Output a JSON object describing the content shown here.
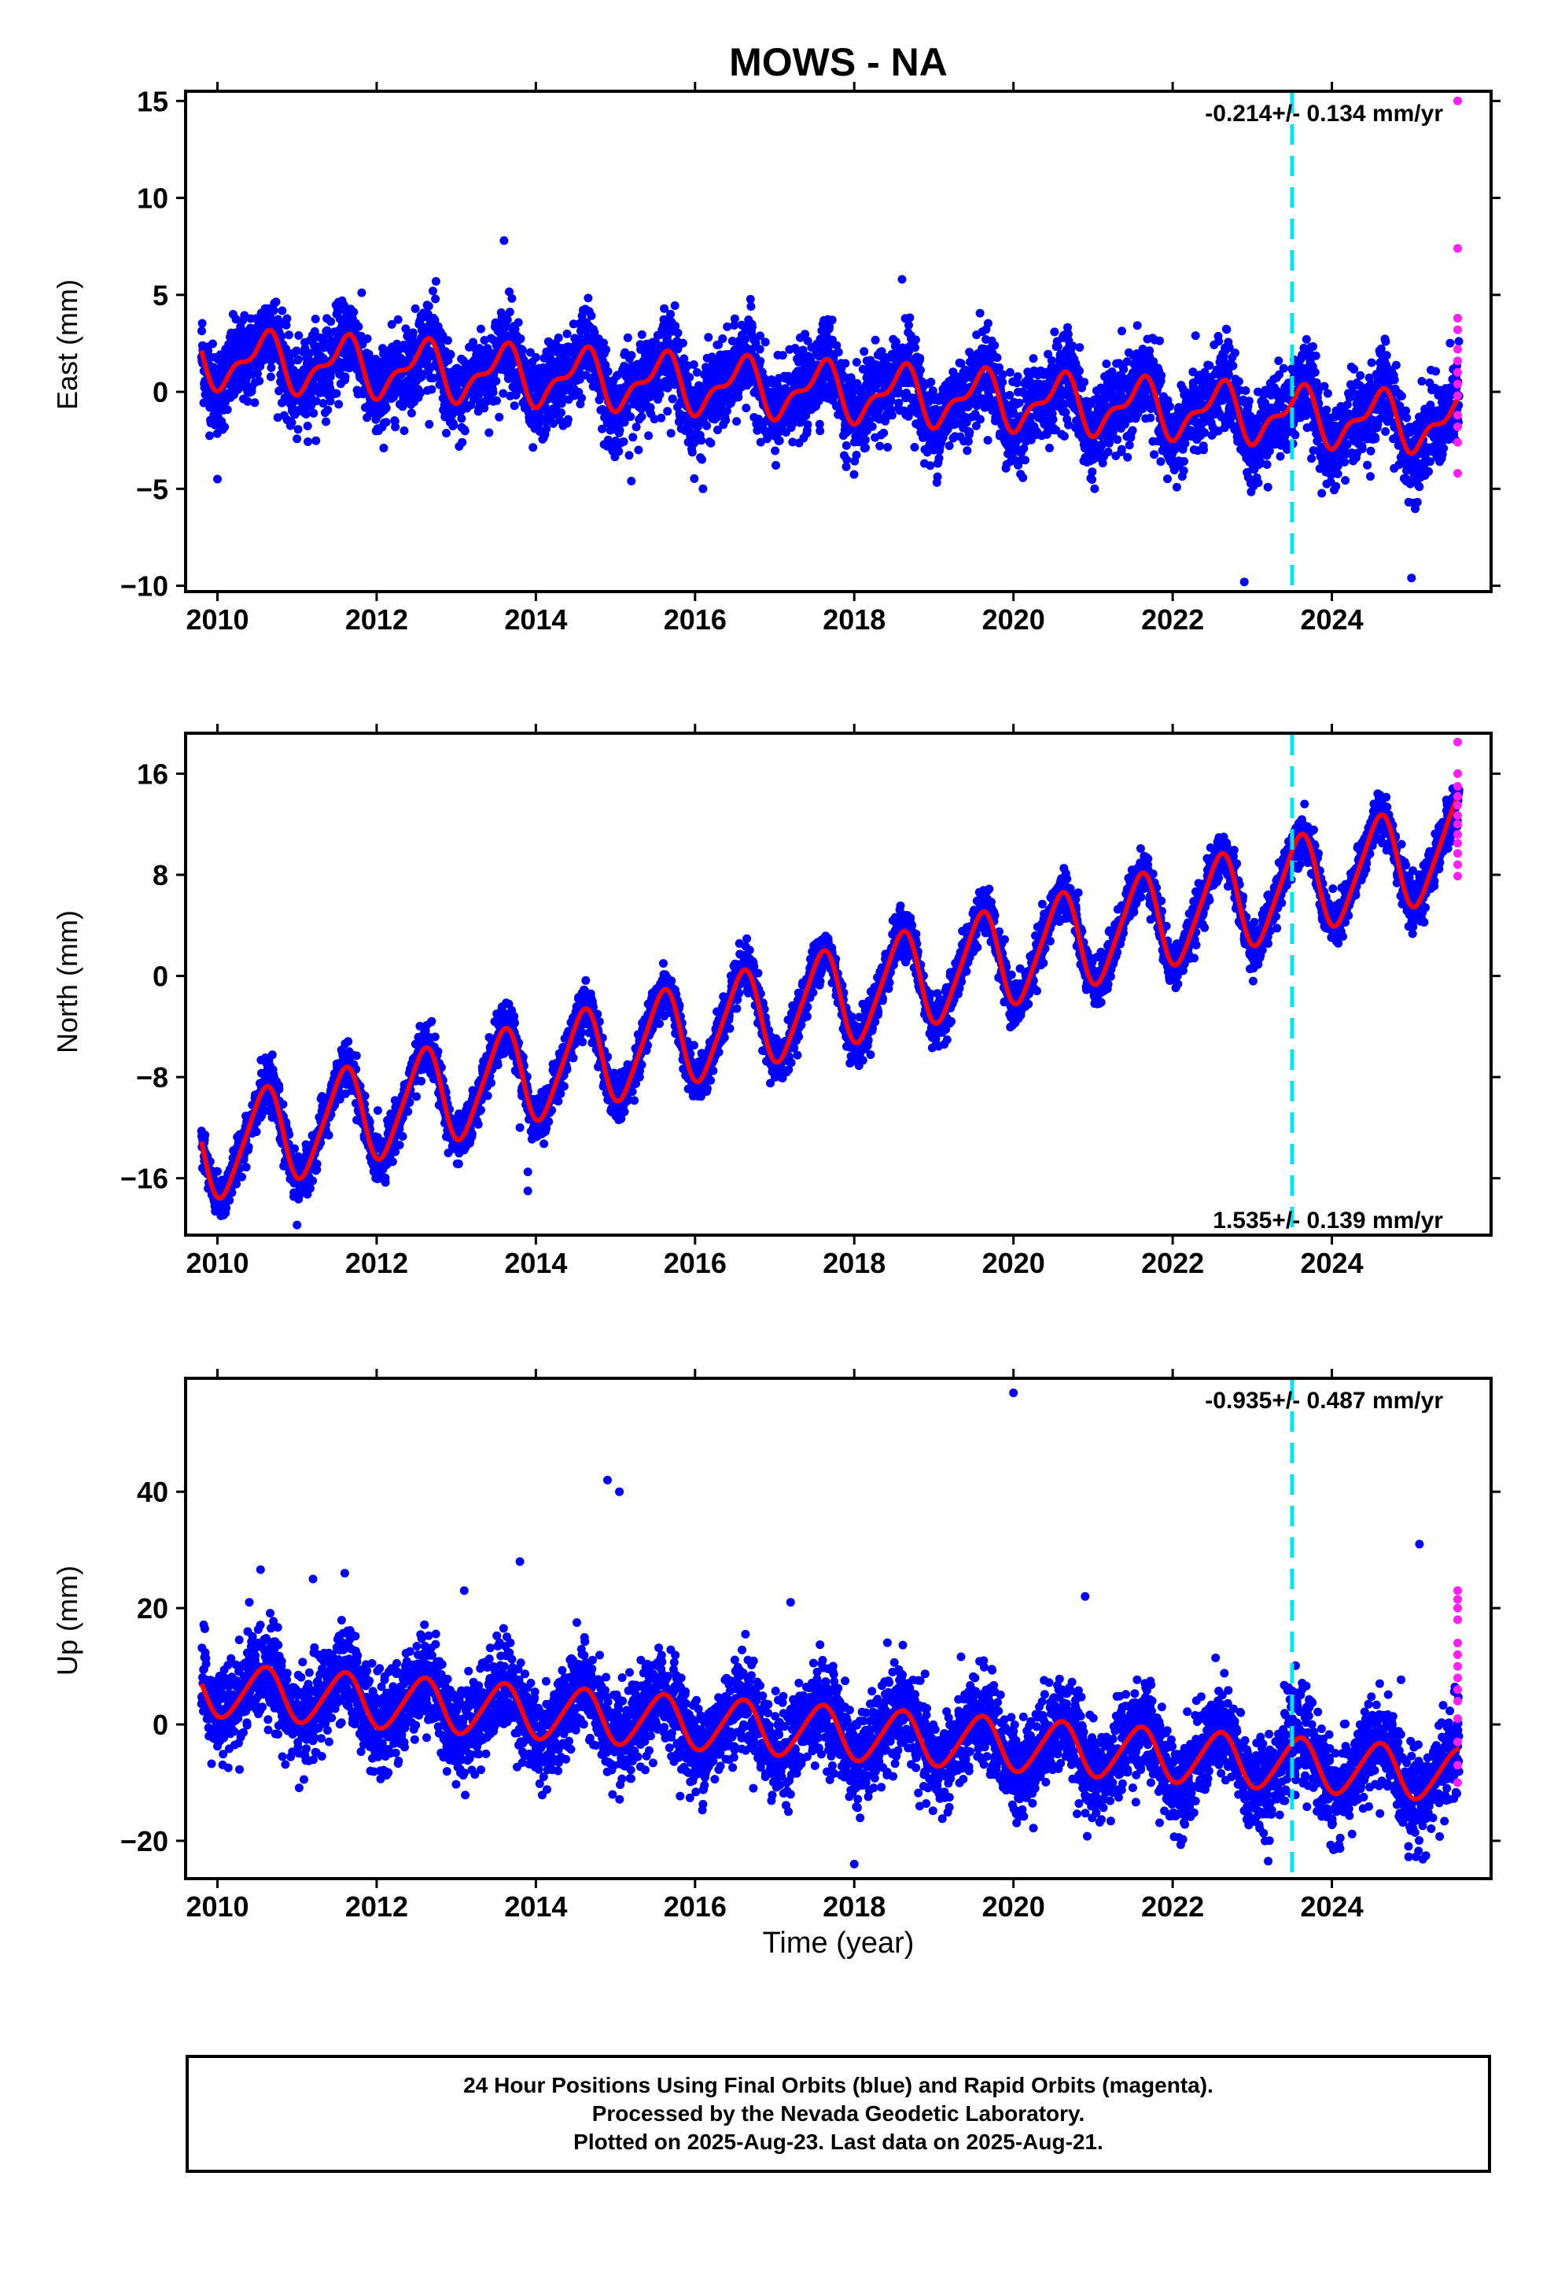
{
  "title": "MOWS - NA",
  "colors": {
    "final": "#0000ff",
    "rapid": "#ff22ee",
    "model": "#ff0000",
    "event": "#00e5f0",
    "axes": "#000000"
  },
  "xaxis": {
    "label": "Time (year)",
    "range": [
      2009.6,
      2026.0
    ],
    "ticks": [
      "2010",
      "2012",
      "2014",
      "2016",
      "2018",
      "2020",
      "2022",
      "2024"
    ]
  },
  "event_year": 2023.5,
  "panels": [
    {
      "ylabel": "East (mm)",
      "ylim": [
        -10.3,
        15.5
      ],
      "yticks": [
        "15",
        "10",
        "5",
        "0",
        "−5",
        "−10"
      ],
      "rate": "-0.214+/- 0.134 mm/yr",
      "rate_pos": "top-right"
    },
    {
      "ylabel": "North (mm)",
      "ylim": [
        -20.5,
        19.2
      ],
      "yticks": [
        "16",
        "8",
        "0",
        "−8",
        "−16"
      ],
      "rate": "1.535+/- 0.139 mm/yr",
      "rate_pos": "bottom-right"
    },
    {
      "ylabel": "Up (mm)",
      "ylim": [
        -26.5,
        59.5
      ],
      "yticks": [
        "40",
        "20",
        "0",
        "−20"
      ],
      "rate": "-0.935+/- 0.487 mm/yr",
      "rate_pos": "top-right"
    }
  ],
  "chart_data": {
    "type": "scatter",
    "title": "MOWS - NA",
    "xlabel": "Time (year)",
    "x_range": [
      2009.6,
      2026.0
    ],
    "series": [
      {
        "name": "Final Orbits (blue)",
        "panel": "East (mm)",
        "model": {
          "start": 2009.8,
          "end": 2025.6,
          "offset": 1.7,
          "rate_mm_yr": -0.214,
          "annual_amplitude": 1.3,
          "semiannual_amplitude": 0.6,
          "scatter_sd": 1.1
        },
        "outliers": [
          [
            2010.0,
            -4.5
          ],
          [
            2013.6,
            7.8
          ],
          [
            2015.2,
            -4.6
          ],
          [
            2016.1,
            -5.0
          ],
          [
            2018.6,
            5.8
          ],
          [
            2022.9,
            -9.8
          ],
          [
            2025.0,
            -9.6
          ]
        ]
      },
      {
        "name": "Final Orbits (blue)",
        "panel": "North (mm)",
        "model": {
          "start": 2009.8,
          "end": 2025.6,
          "offset": -14.0,
          "rate_mm_yr": 1.535,
          "annual_amplitude": 3.8,
          "semiannual_amplitude": 0.6,
          "scatter_sd": 0.9
        },
        "outliers": [
          [
            2011.0,
            -19.7
          ],
          [
            2013.9,
            -15.5
          ],
          [
            2013.9,
            -17.0
          ],
          [
            2012.9,
            -14.0
          ],
          [
            2013.8,
            -12.0
          ]
        ]
      },
      {
        "name": "Final Orbits (blue)",
        "panel": "Up (mm)",
        "model": {
          "start": 2009.8,
          "end": 2025.6,
          "offset": 6.0,
          "rate_mm_yr": -0.935,
          "annual_amplitude": 4.5,
          "semiannual_amplitude": 0.5,
          "scatter_sd": 4.0
        },
        "outliers": [
          [
            2010.4,
            21.0
          ],
          [
            2011.2,
            25.0
          ],
          [
            2011.6,
            26.0
          ],
          [
            2013.1,
            23.0
          ],
          [
            2013.8,
            28.0
          ],
          [
            2014.9,
            42.0
          ],
          [
            2015.05,
            40.0
          ],
          [
            2017.2,
            21.0
          ],
          [
            2020.0,
            57.0
          ],
          [
            2020.9,
            22.0
          ],
          [
            2018.0,
            -24.0
          ],
          [
            2023.2,
            -23.5
          ],
          [
            2025.1,
            31.0
          ]
        ]
      },
      {
        "name": "Rapid Orbits (magenta)",
        "panel": "East (mm)",
        "points": [
          [
            2025.58,
            15.0
          ],
          [
            2025.58,
            7.4
          ],
          [
            2025.58,
            3.8
          ],
          [
            2025.58,
            3.2
          ],
          [
            2025.58,
            2.2
          ],
          [
            2025.58,
            1.6
          ],
          [
            2025.58,
            1.0
          ],
          [
            2025.58,
            0.4
          ],
          [
            2025.58,
            -0.2
          ],
          [
            2025.58,
            -1.2
          ],
          [
            2025.58,
            -1.8
          ],
          [
            2025.58,
            -2.6
          ],
          [
            2025.58,
            -4.2
          ]
        ]
      },
      {
        "name": "Rapid Orbits (magenta)",
        "panel": "North (mm)",
        "points": [
          [
            2025.58,
            18.5
          ],
          [
            2025.58,
            16.0
          ],
          [
            2025.58,
            15.0
          ],
          [
            2025.58,
            14.2
          ],
          [
            2025.58,
            13.5
          ],
          [
            2025.58,
            12.7
          ],
          [
            2025.58,
            12.0
          ],
          [
            2025.58,
            11.2
          ],
          [
            2025.58,
            10.5
          ],
          [
            2025.58,
            9.7
          ],
          [
            2025.58,
            8.8
          ],
          [
            2025.58,
            7.9
          ]
        ]
      },
      {
        "name": "Rapid Orbits (magenta)",
        "panel": "Up (mm)",
        "points": [
          [
            2025.58,
            23.0
          ],
          [
            2025.58,
            21.5
          ],
          [
            2025.58,
            20.0
          ],
          [
            2025.58,
            18.0
          ],
          [
            2025.58,
            14.0
          ],
          [
            2025.58,
            12.0
          ],
          [
            2025.58,
            10.0
          ],
          [
            2025.58,
            8.0
          ],
          [
            2025.58,
            6.0
          ],
          [
            2025.58,
            4.0
          ],
          [
            2025.58,
            1.0
          ],
          [
            2025.58,
            -3.0
          ],
          [
            2025.58,
            -7.0
          ],
          [
            2025.58,
            -10.0
          ]
        ]
      }
    ],
    "rates": [
      "-0.214+/- 0.134 mm/yr",
      "1.535+/- 0.139 mm/yr",
      "-0.935+/- 0.487 mm/yr"
    ],
    "grid": false
  },
  "footer": {
    "line1": "24 Hour Positions Using Final Orbits (blue) and Rapid Orbits (magenta).",
    "line2": "Processed by the Nevada Geodetic Laboratory.",
    "line3": "Plotted on 2025-Aug-23. Last data on 2025-Aug-21."
  }
}
